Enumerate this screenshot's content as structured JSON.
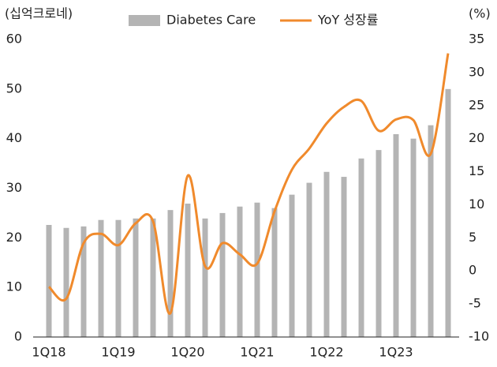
{
  "chart_data": {
    "type": "bar_line",
    "y_label": "(십억크로네)",
    "y2_label": "(%)",
    "categories": [
      "1Q18",
      null,
      null,
      null,
      "1Q19",
      null,
      null,
      null,
      "1Q20",
      null,
      null,
      null,
      "1Q21",
      null,
      null,
      null,
      "1Q22",
      null,
      null,
      null,
      "1Q23",
      null,
      null,
      null
    ],
    "series": [
      {
        "name": "Diabetes Care",
        "type": "bar",
        "color": "#b4b4b4",
        "axis": "y",
        "values": [
          22.6,
          22.0,
          22.3,
          23.6,
          23.6,
          23.9,
          23.9,
          25.6,
          26.9,
          23.9,
          25.0,
          26.3,
          27.1,
          26.0,
          28.7,
          31.1,
          33.3,
          32.3,
          36.0,
          37.7,
          40.9,
          40.0,
          42.7,
          50.0
        ]
      },
      {
        "name": "YoY 성장률",
        "type": "line",
        "color": "#f08a2c",
        "axis": "y2",
        "values": [
          -2.4,
          -4.2,
          4.2,
          5.6,
          3.9,
          7.2,
          7.5,
          -6.4,
          14.4,
          0.7,
          4.2,
          2.5,
          1.1,
          9.0,
          15.3,
          18.5,
          22.3,
          24.8,
          25.7,
          21.2,
          22.9,
          22.8,
          17.7,
          32.9
        ]
      }
    ],
    "ylim": [
      0,
      60
    ],
    "yticks": [
      0,
      10,
      20,
      30,
      40,
      50,
      60
    ],
    "y2lim": [
      -10,
      35
    ],
    "y2ticks": [
      -10,
      -5,
      0,
      5,
      10,
      15,
      20,
      25,
      30,
      35
    ]
  }
}
